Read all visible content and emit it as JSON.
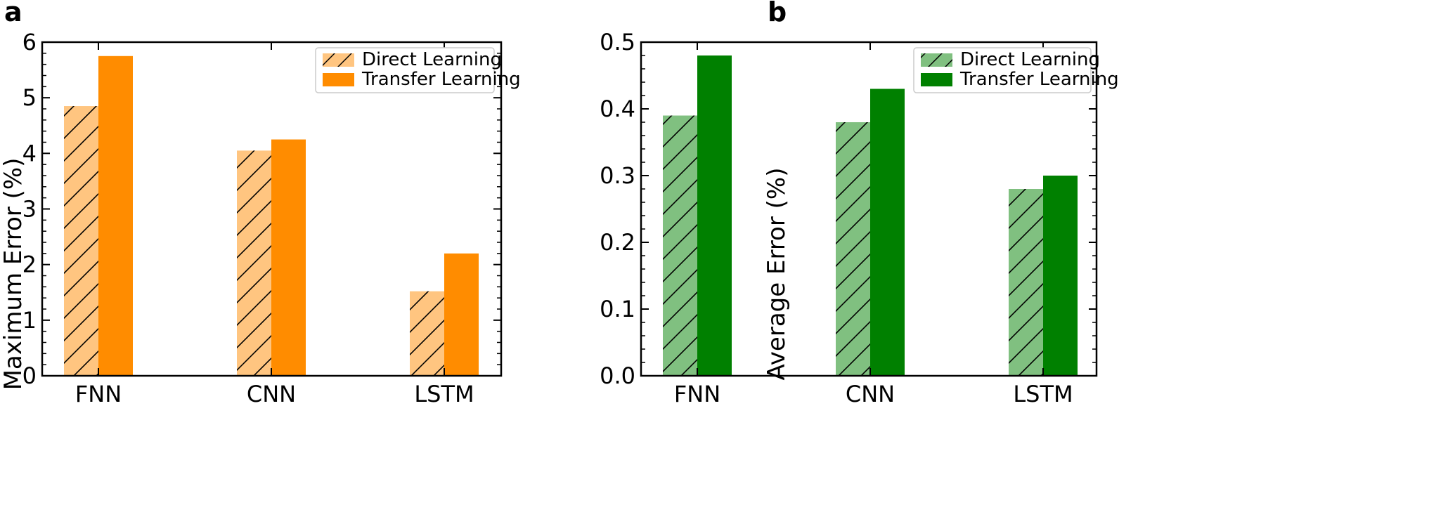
{
  "chart_data": [
    {
      "type": "bar",
      "panel_label": "a",
      "categories": [
        "FNN",
        "CNN",
        "LSTM"
      ],
      "series": [
        {
          "name": "Direct Learning",
          "values": [
            4.85,
            4.05,
            1.52
          ],
          "color": "#ffc580",
          "hatch": true
        },
        {
          "name": "Transfer Learning",
          "values": [
            5.75,
            4.25,
            2.2
          ],
          "color": "#ff8c00",
          "hatch": false
        }
      ],
      "ylabel": "Maximum Error (%)",
      "xlabel": "",
      "ylim": [
        0,
        6
      ],
      "yticks": [
        0,
        1,
        2,
        3,
        4,
        5,
        6
      ],
      "ytick_labels": [
        "0",
        "1",
        "2",
        "3",
        "4",
        "5",
        "6"
      ],
      "legend_position": "top-right",
      "grid": false
    },
    {
      "type": "bar",
      "panel_label": "b",
      "categories": [
        "FNN",
        "CNN",
        "LSTM"
      ],
      "series": [
        {
          "name": "Direct Learning",
          "values": [
            0.39,
            0.38,
            0.28
          ],
          "color": "#80c080",
          "hatch": true
        },
        {
          "name": "Transfer Learning",
          "values": [
            0.48,
            0.43,
            0.3
          ],
          "color": "#008000",
          "hatch": false
        }
      ],
      "ylabel": "Average Error (%)",
      "xlabel": "",
      "ylim": [
        0,
        0.5
      ],
      "yticks": [
        0,
        0.1,
        0.2,
        0.3,
        0.4,
        0.5
      ],
      "ytick_labels": [
        "0.0",
        "0.1",
        "0.2",
        "0.3",
        "0.4",
        "0.5"
      ],
      "legend_position": "top-right",
      "grid": false
    }
  ]
}
